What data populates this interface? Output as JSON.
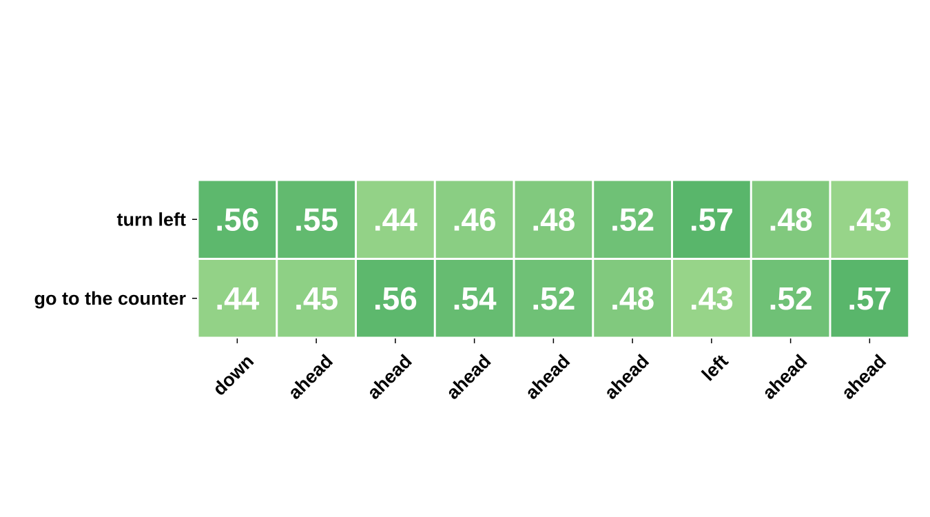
{
  "chart_data": {
    "type": "heatmap",
    "title": "",
    "xlabel": "",
    "ylabel": "",
    "rows": [
      "turn left",
      "go to the counter"
    ],
    "columns": [
      "down",
      "ahead",
      "ahead",
      "ahead",
      "ahead",
      "ahead",
      "left",
      "ahead",
      "ahead"
    ],
    "values": [
      [
        0.56,
        0.55,
        0.44,
        0.46,
        0.48,
        0.52,
        0.57,
        0.48,
        0.43
      ],
      [
        0.44,
        0.45,
        0.56,
        0.54,
        0.52,
        0.48,
        0.43,
        0.52,
        0.57
      ]
    ],
    "value_labels": [
      [
        ".56",
        ".55",
        ".44",
        ".46",
        ".48",
        ".52",
        ".57",
        ".48",
        ".43"
      ],
      [
        ".44",
        ".45",
        ".56",
        ".54",
        ".52",
        ".48",
        ".43",
        ".52",
        ".57"
      ]
    ],
    "color_range": [
      0.43,
      0.57
    ],
    "colors": {
      "low": "#97d489",
      "high": "#59b66b",
      "cell_border": "#ffffff",
      "cell_text": "#ffffff"
    },
    "column_label_rotation_deg": -45,
    "grid": false,
    "legend": "none"
  }
}
